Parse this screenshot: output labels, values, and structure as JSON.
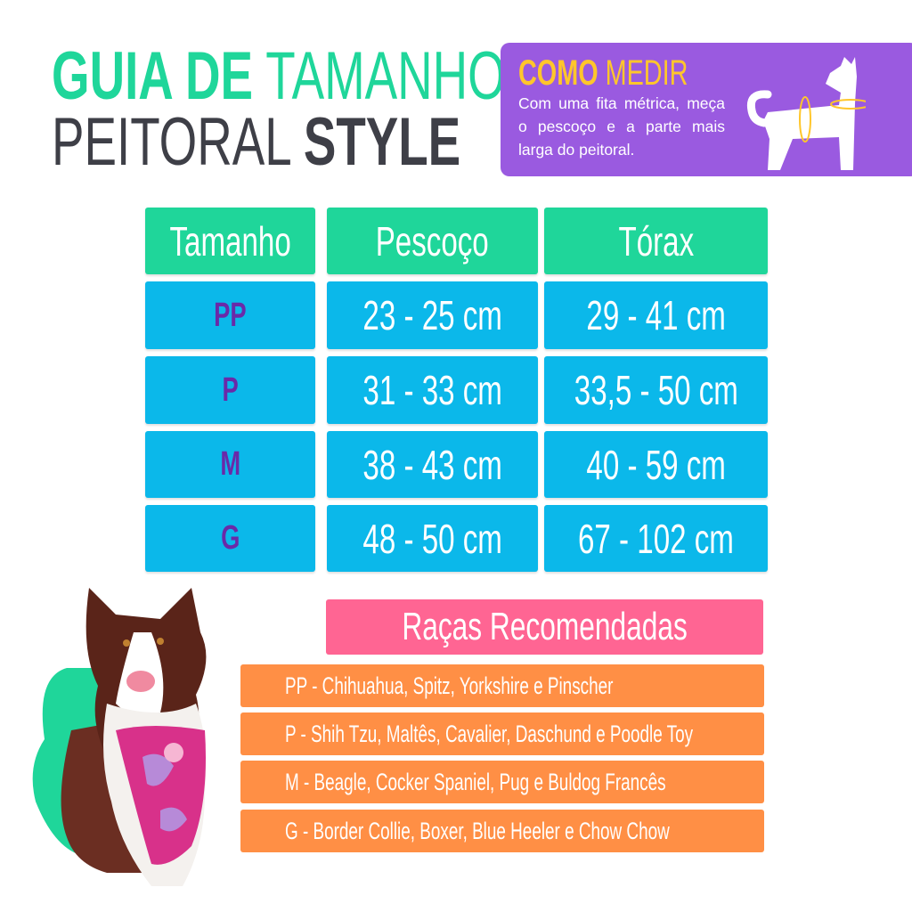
{
  "header": {
    "title_line1_bold": "GUIA DE",
    "title_line1_light": "TAMANHO",
    "title_line2_light": "PEITORAL",
    "title_line2_bold": "STYLE"
  },
  "how_to_measure": {
    "title_bold": "COMO",
    "title_light": "MEDIR",
    "text": "Com uma fita métrica, meça o pescoço e a parte mais larga do peitoral.",
    "icon": "dog-silhouette-with-measuring-rings"
  },
  "size_table": {
    "headers": [
      "Tamanho",
      "Pescoço",
      "Tórax"
    ],
    "rows": [
      {
        "size": "PP",
        "neck": "23 - 25 cm",
        "chest": "29 - 41 cm"
      },
      {
        "size": "P",
        "neck": "31 - 33 cm",
        "chest": "33,5 - 50 cm"
      },
      {
        "size": "M",
        "neck": "38 - 43 cm",
        "chest": "40 - 59 cm"
      },
      {
        "size": "G",
        "neck": "48 - 50 cm",
        "chest": "67 - 102 cm"
      }
    ]
  },
  "breeds": {
    "title": "Raças Recomendadas",
    "items": [
      "PP - Chihuahua, Spitz, Yorkshire e Pinscher",
      "P - Shih Tzu, Maltês, Cavalier, Daschund e Poodle Toy",
      "M - Beagle, Cocker Spaniel, Pug e Buldog Francês",
      "G - Border Collie, Boxer, Blue Heeler e Chow Chow"
    ]
  },
  "colors": {
    "green": "#1fd69a",
    "purple": "#9a5ae0",
    "yellow": "#ffc62b",
    "cyan": "#0bb8ea",
    "size_text": "#6a2aa8",
    "pink": "#ff6593",
    "orange": "#ff8f45",
    "dark_text": "#3e3f47"
  }
}
